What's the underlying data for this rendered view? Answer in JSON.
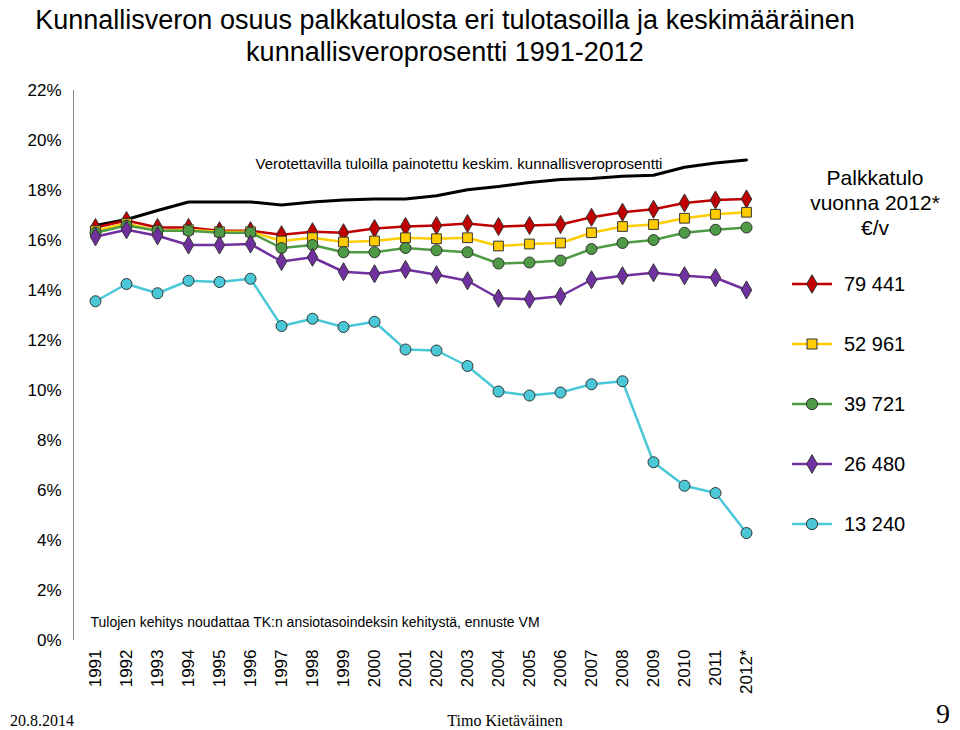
{
  "chart_data": {
    "type": "line",
    "title": "Kunnallisveron osuus palkkatulosta eri tulotasoilla ja keskimääräinen kunnallisveroprosentti 1991-2012",
    "legend_title": "Palkkatulo vuonna 2012* €/v",
    "note": "Tulojen kehitys noudattaa TK:n ansiotasoindeksin kehitystä, ennuste VM",
    "footer": [
      "20.8.2014",
      "Timo Kietäväinen",
      "9"
    ],
    "categories": [
      "1991",
      "1992",
      "1993",
      "1994",
      "1995",
      "1996",
      "1997",
      "1998",
      "1999",
      "2000",
      "2001",
      "2002",
      "2003",
      "2004",
      "2005",
      "2006",
      "2007",
      "2008",
      "2009",
      "2010",
      "2011",
      "2012*"
    ],
    "ylim": [
      0,
      22
    ],
    "yticks": [
      {
        "value": 0,
        "label": "0%"
      },
      {
        "value": 2,
        "label": "2%"
      },
      {
        "value": 4,
        "label": "4%"
      },
      {
        "value": 6,
        "label": "6%"
      },
      {
        "value": 8,
        "label": "8%"
      },
      {
        "value": 10,
        "label": "10%"
      },
      {
        "value": 12,
        "label": "12%"
      },
      {
        "value": 14,
        "label": "14%"
      },
      {
        "value": 16,
        "label": "16%"
      },
      {
        "value": 18,
        "label": "18%"
      },
      {
        "value": 20,
        "label": "20%"
      },
      {
        "value": 22,
        "label": "22%"
      }
    ],
    "grid": false,
    "legend": "right",
    "series": [
      {
        "name": "Verotettavilla tuloilla painotettu keskim. kunnallisveroprosentti",
        "color": "#000000",
        "values": [
          16.6,
          16.84,
          17.2,
          17.54,
          17.54,
          17.54,
          17.42,
          17.54,
          17.62,
          17.66,
          17.66,
          17.79,
          18.03,
          18.16,
          18.32,
          18.44,
          18.48,
          18.57,
          18.61,
          18.93,
          19.1,
          19.22
        ]
      },
      {
        "name": "79 441",
        "color": "#c00000",
        "marker": "diamond",
        "values": [
          16.52,
          16.8,
          16.52,
          16.52,
          16.39,
          16.39,
          16.23,
          16.35,
          16.31,
          16.48,
          16.56,
          16.6,
          16.68,
          16.56,
          16.6,
          16.64,
          16.93,
          17.13,
          17.25,
          17.5,
          17.62,
          17.66
        ]
      },
      {
        "name": "52 961",
        "color": "#ffcc00",
        "marker": "square",
        "values": [
          16.39,
          16.68,
          16.39,
          16.43,
          16.35,
          16.35,
          15.98,
          16.11,
          15.94,
          15.98,
          16.11,
          16.07,
          16.11,
          15.78,
          15.86,
          15.9,
          16.31,
          16.56,
          16.64,
          16.89,
          17.05,
          17.13
        ]
      },
      {
        "name": "39 721",
        "color": "#4e9a45",
        "marker": "circle",
        "values": [
          16.31,
          16.6,
          16.39,
          16.39,
          16.31,
          16.31,
          15.7,
          15.82,
          15.53,
          15.53,
          15.7,
          15.61,
          15.53,
          15.08,
          15.12,
          15.2,
          15.66,
          15.9,
          16.02,
          16.31,
          16.43,
          16.52
        ]
      },
      {
        "name": "26 480",
        "color": "#7030a0",
        "marker": "diamond",
        "values": [
          16.15,
          16.43,
          16.19,
          15.82,
          15.82,
          15.86,
          15.16,
          15.33,
          14.75,
          14.67,
          14.84,
          14.63,
          14.39,
          13.69,
          13.65,
          13.77,
          14.43,
          14.59,
          14.71,
          14.59,
          14.51,
          14.02
        ]
      },
      {
        "name": "13 240",
        "color": "#4bc8d8",
        "marker": "circle",
        "values": [
          13.57,
          14.26,
          13.89,
          14.39,
          14.34,
          14.47,
          12.58,
          12.87,
          12.54,
          12.75,
          11.64,
          11.6,
          10.98,
          9.96,
          9.8,
          9.92,
          10.25,
          10.37,
          7.13,
          6.19,
          5.9,
          4.3
        ]
      }
    ]
  }
}
